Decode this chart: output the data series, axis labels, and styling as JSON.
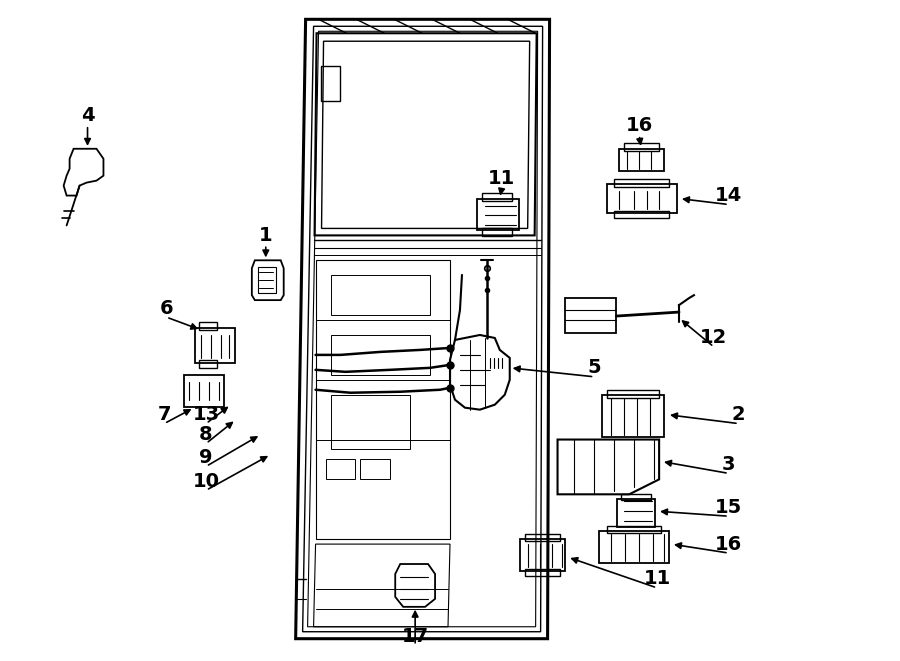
{
  "bg_color": "#ffffff",
  "line_color": "#000000",
  "figsize": [
    9.0,
    6.61
  ],
  "dpi": 100,
  "font_size": 14
}
